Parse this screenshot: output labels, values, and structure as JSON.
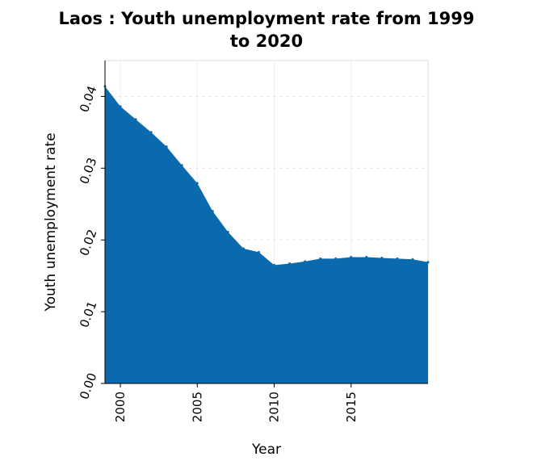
{
  "chart_data": {
    "type": "area",
    "title_lines": [
      "Laos : Youth unemployment rate from 1999",
      "to 2020"
    ],
    "xlabel": "Year",
    "ylabel": "Youth unemployment rate",
    "xlim": [
      1999,
      2020
    ],
    "ylim": [
      0,
      0.045
    ],
    "x_ticks": [
      2000,
      2005,
      2010,
      2015
    ],
    "x_tick_labels": [
      "2000",
      "2005",
      "2010",
      "2015"
    ],
    "y_ticks": [
      0,
      0.01,
      0.02,
      0.03,
      0.04
    ],
    "y_tick_labels": [
      "0.00",
      "0.01",
      "0.02",
      "0.03",
      "0.04"
    ],
    "grid": true,
    "legend": "none",
    "series": [
      {
        "color": "#0b6aad",
        "x": [
          1999,
          2000,
          2001,
          2002,
          2003,
          2004,
          2005,
          2006,
          2007,
          2008,
          2009,
          2010,
          2011,
          2012,
          2013,
          2014,
          2015,
          2016,
          2017,
          2018,
          2019,
          2020
        ],
        "y": [
          0.0414,
          0.0386,
          0.0368,
          0.035,
          0.033,
          0.0304,
          0.0279,
          0.024,
          0.0211,
          0.0188,
          0.0183,
          0.0165,
          0.0167,
          0.017,
          0.0174,
          0.0174,
          0.0176,
          0.0176,
          0.0175,
          0.0174,
          0.0173,
          0.0169
        ]
      }
    ]
  }
}
